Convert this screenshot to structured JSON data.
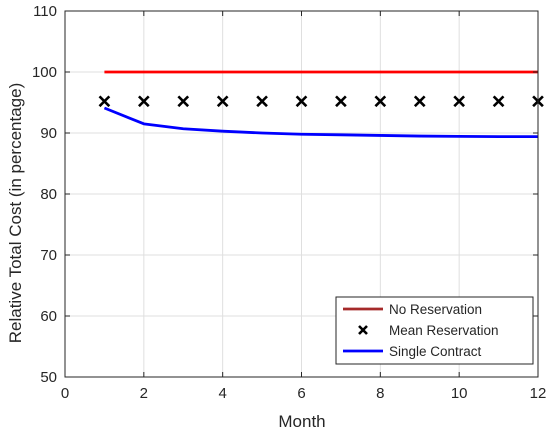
{
  "chart_data": {
    "type": "line",
    "xlabel": "Month",
    "ylabel": "Relative Total Cost (in percentage)",
    "xlim": [
      0,
      12
    ],
    "ylim": [
      50,
      110
    ],
    "xticks": [
      0,
      2,
      4,
      6,
      8,
      10,
      12
    ],
    "yticks": [
      50,
      60,
      70,
      80,
      90,
      100,
      110
    ],
    "grid": true,
    "legend_position": "bottom-right",
    "series": [
      {
        "name": "No Reservation",
        "style": "line",
        "color": "#ff0000",
        "x": [
          1,
          2,
          3,
          4,
          5,
          6,
          7,
          8,
          9,
          10,
          11,
          12
        ],
        "y": [
          100,
          100,
          100,
          100,
          100,
          100,
          100,
          100,
          100,
          100,
          100,
          100
        ]
      },
      {
        "name": "Mean Reservation",
        "style": "marker-x",
        "color": "#000000",
        "x": [
          1,
          2,
          3,
          4,
          5,
          6,
          7,
          8,
          9,
          10,
          11,
          12
        ],
        "y": [
          95.2,
          95.2,
          95.2,
          95.2,
          95.2,
          95.2,
          95.2,
          95.2,
          95.2,
          95.2,
          95.2,
          95.2
        ]
      },
      {
        "name": "Single Contract",
        "style": "line",
        "color": "#0000ff",
        "x": [
          1,
          2,
          3,
          4,
          5,
          6,
          7,
          8,
          9,
          10,
          11,
          12
        ],
        "y": [
          94.1,
          91.5,
          90.7,
          90.3,
          90.0,
          89.8,
          89.7,
          89.6,
          89.5,
          89.45,
          89.4,
          89.4
        ]
      }
    ],
    "legend_entries": [
      {
        "label": "No Reservation",
        "color": "#a52a2a",
        "style": "line"
      },
      {
        "label": "Mean Reservation",
        "color": "#000000",
        "style": "marker-x"
      },
      {
        "label": "Single Contract",
        "color": "#0000ff",
        "style": "line"
      }
    ]
  }
}
